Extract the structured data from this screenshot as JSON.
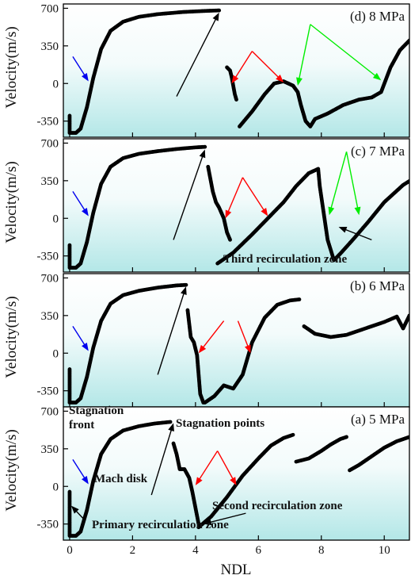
{
  "chart_data": {
    "type": "scatter",
    "xlabel": "NDL",
    "ylabel": "Velocity(m/s)",
    "xlim": [
      -0.2,
      10.8
    ],
    "ylim": [
      -500,
      740
    ],
    "x_ticks": [
      0,
      2,
      4,
      6,
      8,
      10
    ],
    "y_ticks": [
      -350,
      0,
      350,
      700
    ],
    "grid": false,
    "panels": [
      {
        "title": "(d) 8 MPa",
        "color": "#000000",
        "curves": [
          [
            [
              0.0,
              -300
            ],
            [
              0.0,
              -460
            ],
            [
              0.2,
              -460
            ],
            [
              0.35,
              -420
            ],
            [
              0.55,
              -220
            ],
            [
              0.75,
              50
            ],
            [
              1.0,
              320
            ],
            [
              1.3,
              490
            ],
            [
              1.7,
              575
            ],
            [
              2.2,
              620
            ],
            [
              2.8,
              645
            ],
            [
              3.6,
              665
            ],
            [
              4.3,
              675
            ],
            [
              4.75,
              680
            ]
          ],
          [
            [
              5.0,
              150
            ],
            [
              5.1,
              120
            ],
            [
              5.15,
              60
            ],
            [
              5.2,
              -20
            ],
            [
              5.25,
              -100
            ],
            [
              5.3,
              -150
            ]
          ],
          [
            [
              5.4,
              -400
            ],
            [
              5.8,
              -260
            ],
            [
              6.2,
              -100
            ],
            [
              6.5,
              0
            ],
            [
              6.8,
              20
            ],
            [
              7.1,
              -20
            ],
            [
              7.25,
              -80
            ],
            [
              7.35,
              -200
            ],
            [
              7.5,
              -350
            ],
            [
              7.65,
              -400
            ],
            [
              7.8,
              -330
            ],
            [
              8.2,
              -280
            ],
            [
              8.7,
              -200
            ],
            [
              9.2,
              -150
            ],
            [
              9.6,
              -130
            ],
            [
              9.9,
              -80
            ],
            [
              10.2,
              150
            ],
            [
              10.5,
              310
            ],
            [
              10.8,
              400
            ]
          ]
        ],
        "arrows": [
          {
            "color": "#0000ee",
            "from": [
              0.1,
              250
            ],
            "to": [
              0.6,
              20
            ]
          },
          {
            "color": "#000000",
            "from": [
              3.4,
              -120
            ],
            "to": [
              4.75,
              660
            ]
          },
          {
            "color": "#ff0000",
            "from": [
              5.8,
              300
            ],
            "to": [
              5.15,
              0
            ]
          },
          {
            "color": "#ff0000",
            "from": [
              5.8,
              300
            ],
            "to": [
              6.8,
              10
            ]
          },
          {
            "color": "#00ee00",
            "from": [
              7.65,
              550
            ],
            "to": [
              7.25,
              -20
            ]
          },
          {
            "color": "#00ee00",
            "from": [
              7.65,
              550
            ],
            "to": [
              9.9,
              30
            ]
          }
        ]
      },
      {
        "title": "(c) 7 MPa",
        "color": "#000000",
        "curves": [
          [
            [
              0.0,
              -250
            ],
            [
              0.0,
              -460
            ],
            [
              0.2,
              -460
            ],
            [
              0.35,
              -420
            ],
            [
              0.55,
              -220
            ],
            [
              0.75,
              50
            ],
            [
              1.0,
              320
            ],
            [
              1.3,
              480
            ],
            [
              1.7,
              560
            ],
            [
              2.2,
              600
            ],
            [
              2.8,
              625
            ],
            [
              3.4,
              645
            ],
            [
              4.0,
              660
            ],
            [
              4.3,
              665
            ]
          ],
          [
            [
              4.4,
              480
            ],
            [
              4.55,
              250
            ],
            [
              4.65,
              150
            ],
            [
              4.75,
              100
            ],
            [
              4.9,
              0
            ],
            [
              5.0,
              -130
            ],
            [
              5.1,
              -200
            ]
          ],
          [
            [
              4.7,
              -420
            ],
            [
              5.2,
              -320
            ],
            [
              5.8,
              -150
            ],
            [
              6.3,
              0
            ],
            [
              6.8,
              150
            ],
            [
              7.2,
              300
            ],
            [
              7.6,
              420
            ],
            [
              7.9,
              460
            ],
            [
              7.95,
              300
            ],
            [
              8.05,
              100
            ],
            [
              8.2,
              -200
            ],
            [
              8.4,
              -390
            ],
            [
              8.6,
              -330
            ],
            [
              9.0,
              -200
            ],
            [
              9.5,
              -30
            ],
            [
              10.0,
              150
            ],
            [
              10.6,
              310
            ],
            [
              11.2,
              420
            ],
            [
              11.8,
              470
            ],
            [
              12.0,
              480
            ],
            [
              12.1,
              280
            ],
            [
              12.3,
              240
            ],
            [
              12.6,
              220
            ]
          ]
        ],
        "arrows": [
          {
            "color": "#0000ee",
            "from": [
              0.1,
              250
            ],
            "to": [
              0.6,
              20
            ]
          },
          {
            "color": "#000000",
            "from": [
              3.3,
              -200
            ],
            "to": [
              4.3,
              640
            ]
          },
          {
            "color": "#ff0000",
            "from": [
              5.5,
              380
            ],
            "to": [
              4.95,
              0
            ]
          },
          {
            "color": "#ff0000",
            "from": [
              5.5,
              380
            ],
            "to": [
              6.3,
              20
            ]
          },
          {
            "color": "#00ee00",
            "from": [
              8.8,
              620
            ],
            "to": [
              8.25,
              30
            ]
          },
          {
            "color": "#00ee00",
            "from": [
              8.8,
              620
            ],
            "to": [
              9.2,
              30
            ]
          },
          {
            "color": "#000000",
            "from": [
              9.6,
              -200
            ],
            "to": [
              8.55,
              -80
            ]
          }
        ],
        "annotations": [
          "Third recirculation zone"
        ]
      },
      {
        "title": "(b) 6 MPa",
        "color": "#000000",
        "curves": [
          [
            [
              0.0,
              -150
            ],
            [
              0.0,
              -460
            ],
            [
              0.2,
              -460
            ],
            [
              0.35,
              -420
            ],
            [
              0.55,
              -220
            ],
            [
              0.75,
              50
            ],
            [
              1.0,
              300
            ],
            [
              1.3,
              460
            ],
            [
              1.7,
              540
            ],
            [
              2.2,
              580
            ],
            [
              2.8,
              610
            ],
            [
              3.4,
              630
            ],
            [
              3.7,
              635
            ]
          ],
          [
            [
              3.75,
              400
            ],
            [
              3.85,
              150
            ],
            [
              3.95,
              100
            ],
            [
              4.05,
              -20
            ],
            [
              4.1,
              -200
            ],
            [
              4.15,
              -380
            ],
            [
              4.25,
              -460
            ]
          ],
          [
            [
              4.3,
              -460
            ],
            [
              4.6,
              -400
            ],
            [
              4.9,
              -300
            ],
            [
              5.2,
              -330
            ],
            [
              5.5,
              -200
            ],
            [
              5.8,
              100
            ],
            [
              6.2,
              330
            ],
            [
              6.6,
              450
            ],
            [
              7.0,
              490
            ],
            [
              7.3,
              500
            ]
          ],
          [
            [
              7.45,
              250
            ],
            [
              7.8,
              180
            ],
            [
              8.3,
              150
            ],
            [
              8.8,
              170
            ],
            [
              9.4,
              230
            ],
            [
              10.0,
              290
            ],
            [
              10.4,
              340
            ],
            [
              10.6,
              230
            ],
            [
              10.8,
              350
            ],
            [
              11.4,
              400
            ],
            [
              11.9,
              440
            ],
            [
              12.2,
              470
            ]
          ]
        ],
        "arrows": [
          {
            "color": "#0000ee",
            "from": [
              0.1,
              250
            ],
            "to": [
              0.6,
              20
            ]
          },
          {
            "color": "#000000",
            "from": [
              2.8,
              -200
            ],
            "to": [
              3.7,
              620
            ]
          },
          {
            "color": "#ff0000",
            "from": [
              4.9,
              300
            ],
            "to": [
              4.1,
              0
            ]
          },
          {
            "color": "#ff0000",
            "from": [
              5.35,
              300
            ],
            "to": [
              5.75,
              0
            ]
          }
        ]
      },
      {
        "title": "(a) 5 MPa",
        "color": "#000000",
        "curves": [
          [
            [
              0.0,
              -50
            ],
            [
              0.0,
              -460
            ],
            [
              0.2,
              -460
            ],
            [
              0.35,
              -420
            ],
            [
              0.55,
              -220
            ],
            [
              0.75,
              50
            ],
            [
              1.0,
              300
            ],
            [
              1.3,
              440
            ],
            [
              1.7,
              520
            ],
            [
              2.2,
              560
            ],
            [
              2.7,
              585
            ],
            [
              3.2,
              600
            ]
          ],
          [
            [
              3.3,
              400
            ],
            [
              3.4,
              300
            ],
            [
              3.5,
              160
            ],
            [
              3.65,
              160
            ],
            [
              3.8,
              80
            ],
            [
              3.9,
              -50
            ],
            [
              4.0,
              -200
            ],
            [
              4.1,
              -350
            ]
          ],
          [
            [
              4.1,
              -380
            ],
            [
              4.5,
              -280
            ],
            [
              5.0,
              -100
            ],
            [
              5.5,
              100
            ],
            [
              6.0,
              260
            ],
            [
              6.4,
              380
            ],
            [
              6.8,
              450
            ],
            [
              7.1,
              480
            ]
          ],
          [
            [
              7.2,
              230
            ],
            [
              7.6,
              260
            ],
            [
              8.0,
              330
            ],
            [
              8.3,
              390
            ],
            [
              8.6,
              440
            ],
            [
              8.8,
              460
            ]
          ],
          [
            [
              8.9,
              150
            ],
            [
              9.2,
              200
            ],
            [
              9.6,
              280
            ],
            [
              10.0,
              360
            ],
            [
              10.4,
              420
            ],
            [
              10.8,
              460
            ],
            [
              11.0,
              480
            ]
          ],
          [
            [
              11.1,
              170
            ],
            [
              11.3,
              120
            ],
            [
              11.6,
              100
            ],
            [
              12.0,
              90
            ]
          ]
        ],
        "arrows": [
          {
            "color": "#0000ee",
            "from": [
              0.1,
              250
            ],
            "to": [
              0.6,
              20
            ]
          },
          {
            "color": "#000000",
            "from": [
              2.6,
              -80
            ],
            "to": [
              3.3,
              590
            ]
          },
          {
            "color": "#ff0000",
            "from": [
              4.7,
              330
            ],
            "to": [
              4.0,
              10
            ]
          },
          {
            "color": "#ff0000",
            "from": [
              4.7,
              330
            ],
            "to": [
              5.3,
              10
            ]
          },
          {
            "color": "#000000",
            "from": [
              0.5,
              -320
            ],
            "to": [
              0.05,
              -180
            ]
          },
          {
            "color": "#000000",
            "from": [
              5.6,
              -250
            ],
            "to": [
              4.25,
              -350
            ]
          }
        ],
        "annotations": [
          "Stagnation",
          "front",
          "Stagnation points",
          "Mach disk",
          "Second recirculation zone",
          "Primary recirculation zone"
        ]
      }
    ]
  }
}
